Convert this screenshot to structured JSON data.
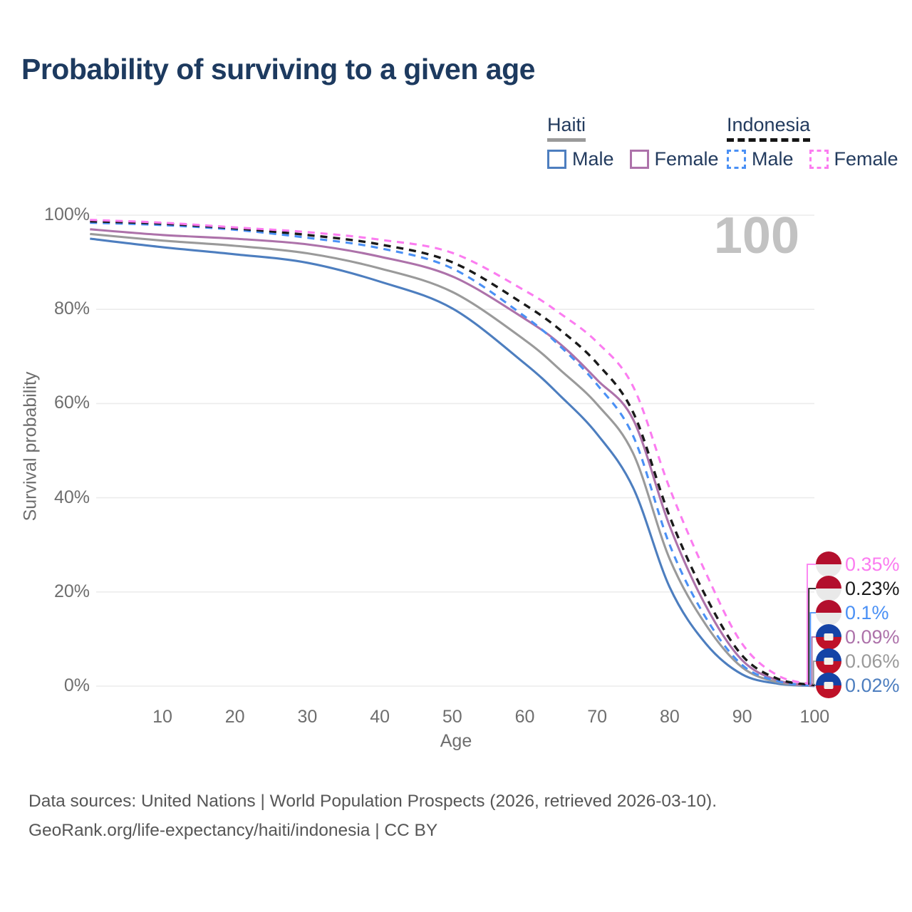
{
  "title": "Probability of surviving to a given age",
  "legend": {
    "groups": [
      {
        "country": "Haiti",
        "line_style": "solid",
        "line_color": "#9a9a9a",
        "items": [
          {
            "label": "Male",
            "color": "#4d7ebf",
            "dashed": false
          },
          {
            "label": "Female",
            "color": "#ad72aa",
            "dashed": false
          }
        ]
      },
      {
        "country": "Indonesia",
        "line_style": "dashed",
        "line_color": "#151515",
        "items": [
          {
            "label": "Male",
            "color": "#4a90f5",
            "dashed": true
          },
          {
            "label": "Female",
            "color": "#fb7cf0",
            "dashed": true
          }
        ]
      }
    ]
  },
  "y_axis": {
    "label": "Survival probability",
    "ticks": [
      "0%",
      "20%",
      "40%",
      "60%",
      "80%",
      "100%"
    ],
    "tick_values": [
      0,
      20,
      40,
      60,
      80,
      100
    ]
  },
  "x_axis": {
    "label": "Age",
    "ticks": [
      10,
      20,
      30,
      40,
      50,
      60,
      70,
      80,
      90,
      100
    ]
  },
  "watermark": "100",
  "end_labels": [
    {
      "value": "0.35%",
      "series": "Indonesia Female",
      "flag": "indonesia",
      "text_color": "#fb7cf0"
    },
    {
      "value": "0.23%",
      "series": "Indonesia Both sexes",
      "flag": "indonesia",
      "text_color": "#1a1a1a"
    },
    {
      "value": "0.1%",
      "series": "Indonesia Male",
      "flag": "indonesia",
      "text_color": "#4a90f5"
    },
    {
      "value": "0.09%",
      "series": "Haiti Female",
      "flag": "haiti",
      "text_color": "#ad72aa"
    },
    {
      "value": "0.06%",
      "series": "Haiti Both sexes",
      "flag": "haiti",
      "text_color": "#9a9a9a"
    },
    {
      "value": "0.02%",
      "series": "Haiti Male",
      "flag": "haiti",
      "text_color": "#4d7ebf"
    }
  ],
  "footer": {
    "line1": "Data sources: United Nations | World Population Prospects (2026, retrieved 2026-03-10).",
    "line2": "GeoRank.org/life-expectancy/haiti/indonesia | CC BY"
  },
  "chart_data": {
    "type": "line",
    "title": "Probability of surviving to a given age",
    "xlabel": "Age",
    "ylabel": "Survival probability",
    "xlim": [
      0,
      100
    ],
    "ylim": [
      0,
      100
    ],
    "grid": true,
    "x": [
      0,
      10,
      20,
      30,
      40,
      50,
      60,
      65,
      70,
      75,
      80,
      85,
      90,
      95,
      100
    ],
    "series": [
      {
        "name": "Haiti Male",
        "country": "Haiti",
        "sex": "Male",
        "color": "#4d7ebf",
        "dashed": false,
        "values": [
          95.0,
          93.2,
          91.7,
          89.9,
          85.9,
          80.2,
          68.5,
          61.5,
          53.5,
          42.0,
          21.0,
          9.0,
          2.5,
          0.5,
          0.02
        ],
        "end_value_label": "0.02%"
      },
      {
        "name": "Haiti Both sexes",
        "country": "Haiti",
        "sex": "Both",
        "color": "#9a9a9a",
        "dashed": false,
        "values": [
          96.0,
          94.6,
          93.5,
          91.9,
          88.7,
          83.7,
          73.5,
          67.0,
          59.8,
          49.3,
          27.0,
          13.0,
          4.0,
          0.8,
          0.06
        ],
        "end_value_label": "0.06%"
      },
      {
        "name": "Haiti Female",
        "country": "Haiti",
        "sex": "Female",
        "color": "#ad72aa",
        "dashed": false,
        "values": [
          97.0,
          95.8,
          95.0,
          93.8,
          91.2,
          87.0,
          78.0,
          72.5,
          65.0,
          56.5,
          34.0,
          17.0,
          5.5,
          1.2,
          0.09
        ],
        "end_value_label": "0.09%"
      },
      {
        "name": "Indonesia Male",
        "country": "Indonesia",
        "sex": "Male",
        "color": "#4a90f5",
        "dashed": true,
        "values": [
          98.4,
          97.9,
          96.9,
          95.2,
          93.0,
          88.7,
          78.5,
          72.0,
          64.0,
          53.0,
          30.0,
          14.5,
          4.5,
          1.0,
          0.1
        ],
        "end_value_label": "0.1%"
      },
      {
        "name": "Indonesia Both sexes",
        "country": "Indonesia",
        "sex": "Both",
        "color": "#1a1a1a",
        "dashed": true,
        "values": [
          98.7,
          98.2,
          97.2,
          95.8,
          93.8,
          90.0,
          81.0,
          75.5,
          68.5,
          58.0,
          36.0,
          19.0,
          6.5,
          1.5,
          0.23
        ],
        "end_value_label": "0.23%"
      },
      {
        "name": "Indonesia Female",
        "country": "Indonesia",
        "sex": "Female",
        "color": "#fb7cf0",
        "dashed": true,
        "values": [
          99.0,
          98.4,
          97.4,
          96.4,
          94.8,
          92.0,
          84.0,
          79.0,
          73.0,
          63.5,
          42.0,
          24.0,
          9.0,
          2.2,
          0.35
        ],
        "end_value_label": "0.35%"
      }
    ],
    "legend_position": "top-right"
  }
}
